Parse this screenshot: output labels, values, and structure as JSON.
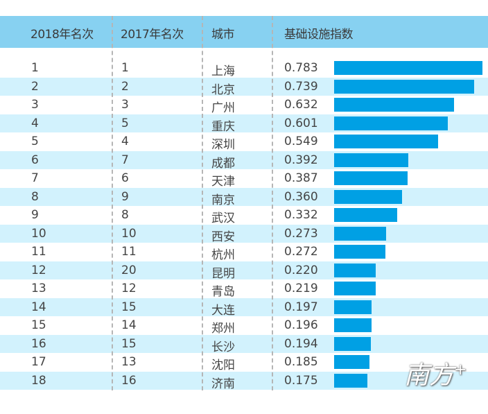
{
  "header": {
    "col1": "2018年名次",
    "col2": "2017年名次",
    "col3": "城市",
    "col4": "基础设施指数"
  },
  "chart_data": {
    "type": "table",
    "columns": [
      "2018年名次",
      "2017年名次",
      "城市",
      "基础设施指数"
    ],
    "rows": [
      {
        "rank2018": "1",
        "rank2017": "1",
        "city": "上海",
        "value": "0.783"
      },
      {
        "rank2018": "2",
        "rank2017": "2",
        "city": "北京",
        "value": "0.739"
      },
      {
        "rank2018": "3",
        "rank2017": "3",
        "city": "广州",
        "value": "0.632"
      },
      {
        "rank2018": "4",
        "rank2017": "5",
        "city": "重庆",
        "value": "0.601"
      },
      {
        "rank2018": "5",
        "rank2017": "4",
        "city": "深圳",
        "value": "0.549"
      },
      {
        "rank2018": "6",
        "rank2017": "7",
        "city": "成都",
        "value": "0.392"
      },
      {
        "rank2018": "7",
        "rank2017": "6",
        "city": "天津",
        "value": "0.387"
      },
      {
        "rank2018": "8",
        "rank2017": "9",
        "city": "南京",
        "value": "0.360"
      },
      {
        "rank2018": "9",
        "rank2017": "8",
        "city": "武汉",
        "value": "0.332"
      },
      {
        "rank2018": "10",
        "rank2017": "10",
        "city": "西安",
        "value": "0.273"
      },
      {
        "rank2018": "11",
        "rank2017": "11",
        "city": "杭州",
        "value": "0.272"
      },
      {
        "rank2018": "12",
        "rank2017": "20",
        "city": "昆明",
        "value": "0.220"
      },
      {
        "rank2018": "13",
        "rank2017": "12",
        "city": "青岛",
        "value": "0.219"
      },
      {
        "rank2018": "14",
        "rank2017": "15",
        "city": "大连",
        "value": "0.197"
      },
      {
        "rank2018": "15",
        "rank2017": "14",
        "city": "郑州",
        "value": "0.196"
      },
      {
        "rank2018": "16",
        "rank2017": "15",
        "city": "长沙",
        "value": "0.194"
      },
      {
        "rank2018": "17",
        "rank2017": "13",
        "city": "沈阳",
        "value": "0.185"
      },
      {
        "rank2018": "18",
        "rank2017": "16",
        "city": "济南",
        "value": "0.175"
      }
    ],
    "bar_color": "#00a0e4",
    "header_color": "#87d1f1",
    "stripe_color": "#d2f2fd"
  },
  "watermark": "南方+"
}
